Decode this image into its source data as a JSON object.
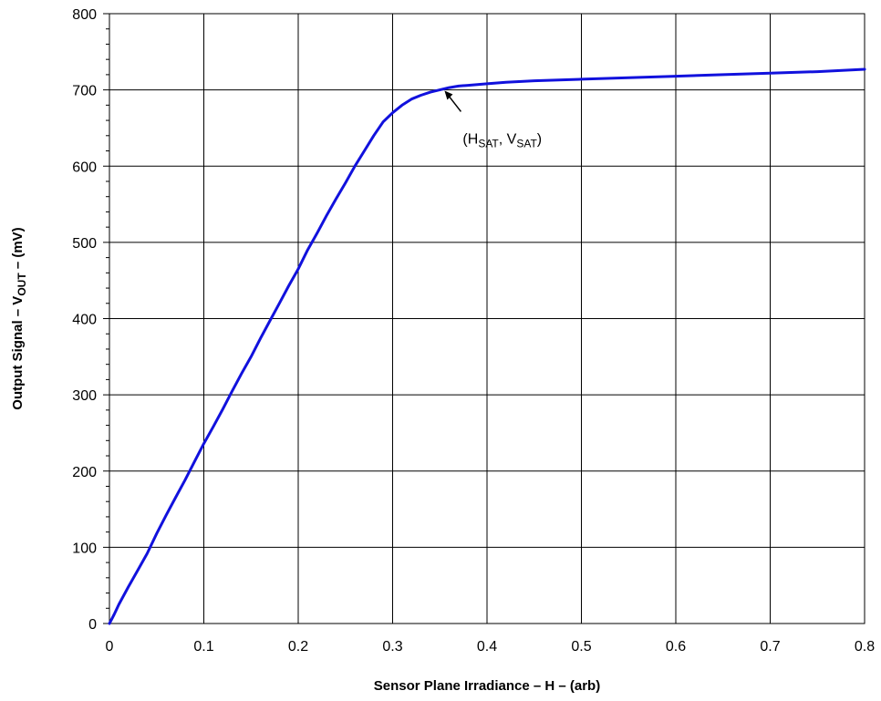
{
  "chart_data": {
    "type": "line",
    "title": "",
    "xlabel": "Sensor Plane Irradiance – H – (arb)",
    "ylabel": {
      "prefix": "Output Signal – V",
      "subscript": "OUT",
      "suffix": " – (mV)"
    },
    "xlim": [
      0,
      0.8
    ],
    "ylim": [
      0,
      800
    ],
    "x_ticks": [
      0,
      0.1,
      0.2,
      0.3,
      0.4,
      0.5,
      0.6,
      0.7,
      0.8
    ],
    "x_tick_labels": [
      "0",
      "0.1",
      "0.2",
      "0.3",
      "0.4",
      "0.5",
      "0.6",
      "0.7",
      "0.8"
    ],
    "y_ticks": [
      0,
      100,
      200,
      300,
      400,
      500,
      600,
      700,
      800
    ],
    "y_tick_labels": [
      "0",
      "100",
      "200",
      "300",
      "400",
      "500",
      "600",
      "700",
      "800"
    ],
    "grid": true,
    "series": [
      {
        "color": "#1111dd",
        "x": [
          0,
          0.005,
          0.01,
          0.02,
          0.03,
          0.04,
          0.05,
          0.06,
          0.07,
          0.08,
          0.09,
          0.1,
          0.11,
          0.12,
          0.13,
          0.14,
          0.15,
          0.16,
          0.17,
          0.18,
          0.19,
          0.2,
          0.21,
          0.22,
          0.23,
          0.24,
          0.25,
          0.26,
          0.27,
          0.28,
          0.29,
          0.3,
          0.31,
          0.32,
          0.33,
          0.34,
          0.35,
          0.36,
          0.37,
          0.38,
          0.39,
          0.4,
          0.42,
          0.45,
          0.5,
          0.55,
          0.6,
          0.65,
          0.7,
          0.75,
          0.8
        ],
        "y": [
          0,
          12,
          25,
          48,
          70,
          92,
          118,
          142,
          165,
          188,
          212,
          236,
          258,
          281,
          305,
          328,
          350,
          374,
          397,
          420,
          443,
          465,
          490,
          512,
          535,
          557,
          578,
          600,
          620,
          640,
          658,
          670,
          680,
          688,
          693,
          697,
          700,
          703,
          705,
          706,
          707,
          708,
          710,
          712,
          714,
          716,
          718,
          720,
          722,
          724,
          727
        ]
      }
    ],
    "annotation": {
      "x": 0.355,
      "y": 699,
      "text": [
        {
          "t": "(H",
          "sub": false
        },
        {
          "t": "SAT",
          "sub": true
        },
        {
          "t": ", V",
          "sub": false
        },
        {
          "t": "SAT",
          "sub": true
        },
        {
          "t": ")",
          "sub": false
        }
      ]
    }
  }
}
